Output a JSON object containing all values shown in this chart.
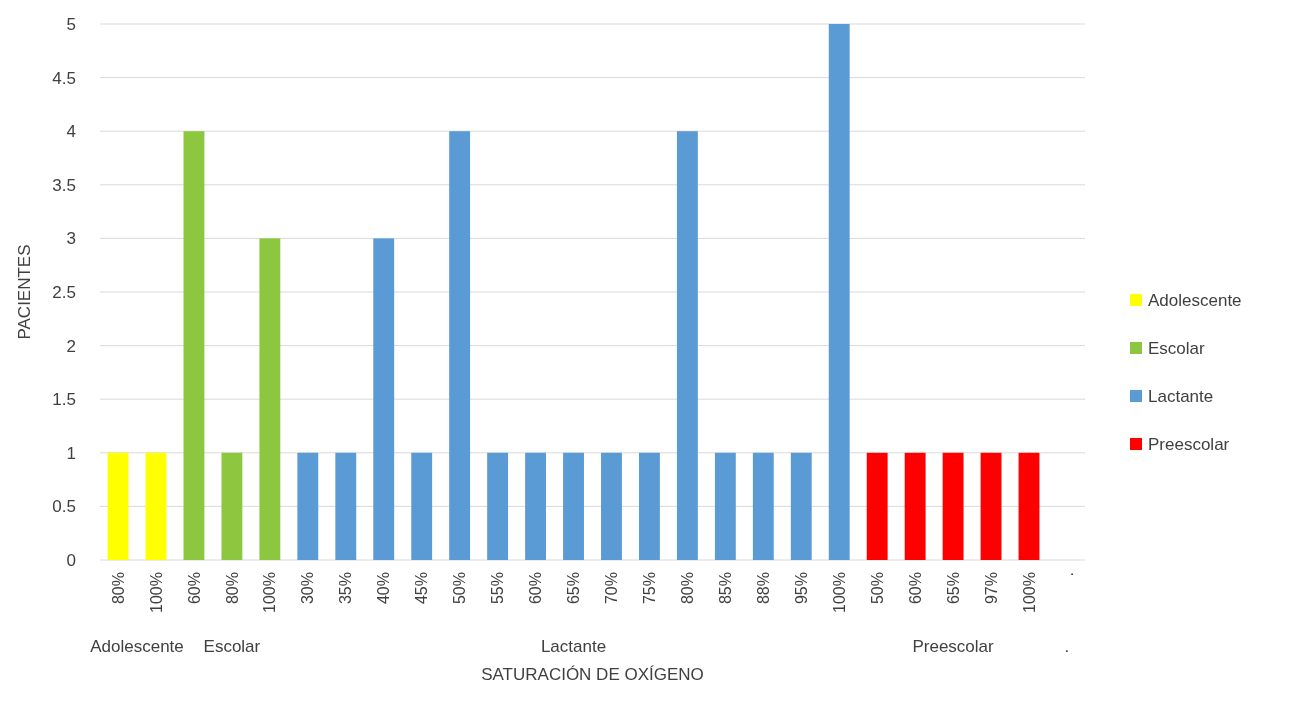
{
  "chart_data": {
    "type": "bar",
    "xlabel": "SATURACIÓN DE OXÍGENO",
    "ylabel": "PACIENTES",
    "categories": [
      "80%",
      "100%",
      "60%",
      "80%",
      "100%",
      "30%",
      "35%",
      "40%",
      "45%",
      "50%",
      "55%",
      "60%",
      "65%",
      "70%",
      "75%",
      "80%",
      "85%",
      "88%",
      "95%",
      "100%",
      "50%",
      "60%",
      "65%",
      "97%",
      "100%",
      "."
    ],
    "series": [
      {
        "name": "Adolescente",
        "color": "#ffff00",
        "values": [
          1,
          1,
          null,
          null,
          null,
          null,
          null,
          null,
          null,
          null,
          null,
          null,
          null,
          null,
          null,
          null,
          null,
          null,
          null,
          null,
          null,
          null,
          null,
          null,
          null,
          null
        ]
      },
      {
        "name": "Escolar",
        "color": "#8dc63f",
        "values": [
          null,
          null,
          4,
          1,
          3,
          null,
          null,
          null,
          null,
          null,
          null,
          null,
          null,
          null,
          null,
          null,
          null,
          null,
          null,
          null,
          null,
          null,
          null,
          null,
          null,
          null
        ]
      },
      {
        "name": "Lactante",
        "color": "#5b9bd5",
        "values": [
          null,
          null,
          null,
          null,
          null,
          1,
          1,
          3,
          1,
          4,
          1,
          1,
          1,
          1,
          1,
          4,
          1,
          1,
          1,
          5,
          null,
          null,
          null,
          null,
          null,
          null
        ]
      },
      {
        "name": "Preescolar",
        "color": "#ff0000",
        "values": [
          null,
          null,
          null,
          null,
          null,
          null,
          null,
          null,
          null,
          null,
          null,
          null,
          null,
          null,
          null,
          null,
          null,
          null,
          null,
          null,
          1,
          1,
          1,
          1,
          1,
          null
        ]
      }
    ],
    "annotations": [
      "Adolescente",
      "Escolar",
      "Lactante",
      "Preescolar",
      "."
    ],
    "ylim": [
      0,
      5
    ],
    "yticks": [
      0,
      0.5,
      1,
      1.5,
      2,
      2.5,
      3,
      3.5,
      4,
      4.5,
      5
    ],
    "grid": "y",
    "legend": "right"
  }
}
